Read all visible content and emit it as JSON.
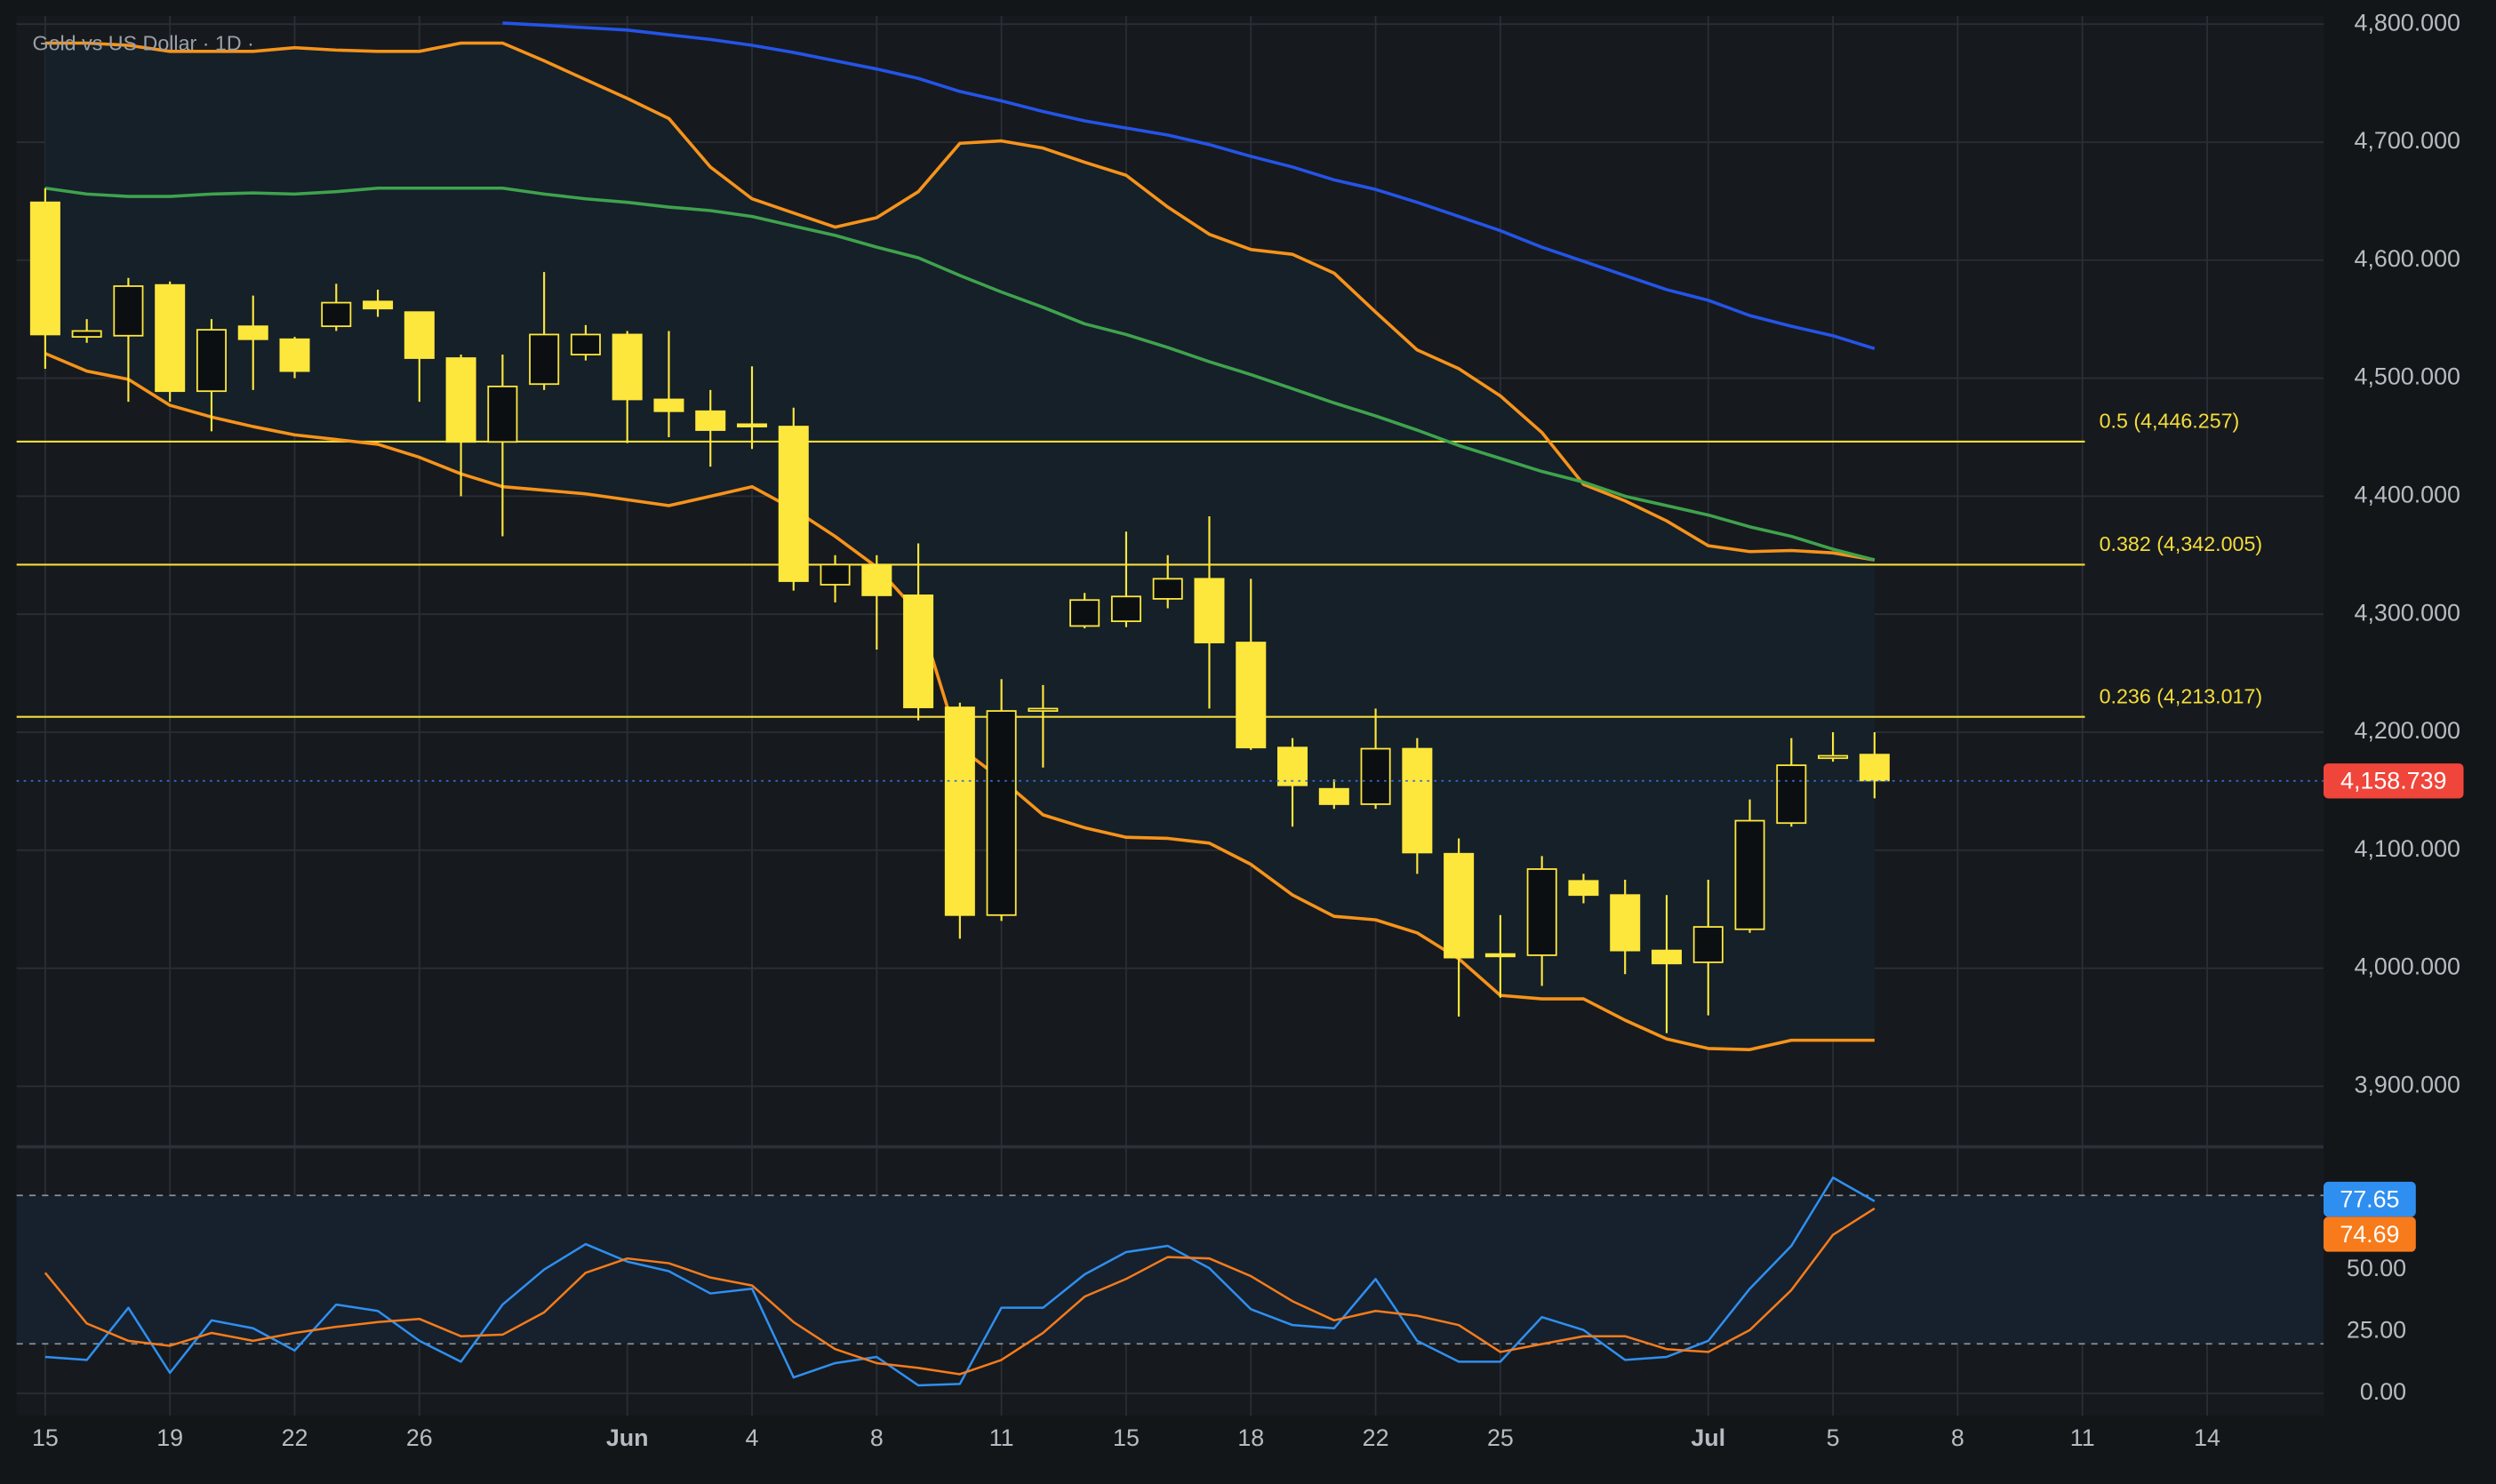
{
  "chart_data": [
    {
      "type": "candlestick",
      "title": "Gold vs US Dollar · 1D ·",
      "xlim": [
        -0.69,
        54.8
      ],
      "ylim": [
        3850,
        4807
      ],
      "yticks": [
        {
          "value": 3900,
          "label": "3,900.000"
        },
        {
          "value": 4000,
          "label": "4,000.000"
        },
        {
          "value": 4100,
          "label": "4,100.000"
        },
        {
          "value": 4200,
          "label": "4,200.000"
        },
        {
          "value": 4300,
          "label": "4,300.000"
        },
        {
          "value": 4400,
          "label": "4,400.000"
        },
        {
          "value": 4500,
          "label": "4,500.000"
        },
        {
          "value": 4600,
          "label": "4,600.000"
        },
        {
          "value": 4700,
          "label": "4,700.000"
        },
        {
          "value": 4800,
          "label": "4,800.000"
        }
      ],
      "grid": true,
      "up_color": "#0c0f12",
      "down_color": "#fde73c",
      "wick_color": "#fde73c",
      "open": [
        4649,
        4535,
        4536,
        4579,
        4489,
        4544,
        4533,
        4544,
        4565,
        4556,
        4517,
        4446,
        4495,
        4520,
        4537,
        4482,
        4472,
        4461,
        4459,
        4325,
        4342,
        4316,
        4221,
        4045,
        4218,
        4290,
        4294,
        4313,
        4330,
        4276,
        4187,
        4152,
        4139,
        4186,
        4097,
        4012,
        4011,
        4074,
        4062,
        4015,
        4005,
        4033,
        4123,
        4178,
        4181
      ],
      "high": [
        4661,
        4550,
        4585,
        4582,
        4550,
        4570,
        4535,
        4580,
        4575,
        4556,
        4520,
        4520,
        4590,
        4545,
        4540,
        4540,
        4490,
        4510,
        4475,
        4350,
        4350,
        4360,
        4225,
        4245,
        4240,
        4318,
        4370,
        4350,
        4383,
        4330,
        4195,
        4160,
        4220,
        4195,
        4110,
        4045,
        4095,
        4080,
        4075,
        4062,
        4075,
        4143,
        4195,
        4200,
        4200
      ],
      "low": [
        4508,
        4530,
        4480,
        4480,
        4455,
        4490,
        4500,
        4540,
        4552,
        4480,
        4400,
        4366,
        4490,
        4515,
        4445,
        4450,
        4425,
        4440,
        4320,
        4310,
        4270,
        4210,
        4025,
        4040,
        4170,
        4288,
        4289,
        4305,
        4220,
        4185,
        4120,
        4135,
        4135,
        4080,
        3959,
        3975,
        3985,
        4055,
        3995,
        3945,
        3960,
        4030,
        4120,
        4175,
        4144
      ],
      "close": [
        4537,
        4540,
        4578,
        4489,
        4541,
        4533,
        4506,
        4564,
        4559,
        4517,
        4446,
        4493,
        4537,
        4537,
        4482,
        4472,
        4456,
        4459,
        4328,
        4342,
        4316,
        4221,
        4045,
        4218,
        4220,
        4312,
        4315,
        4330,
        4276,
        4187,
        4155,
        4139,
        4186,
        4098,
        4009,
        4010,
        4084,
        4062,
        4015,
        4004,
        4035,
        4125,
        4172,
        4180,
        4159
      ],
      "overlays": [
        {
          "color": "#f7931a",
          "values": [
            4784,
            4784,
            4782,
            4777,
            4777,
            4777,
            4780,
            4778,
            4777,
            4777,
            4784,
            4784,
            4769,
            4753,
            4737,
            4720,
            4679,
            4652,
            4640,
            4628,
            4636,
            4658,
            4699,
            4701,
            4695,
            4683,
            4672,
            4645,
            4622,
            4609,
            4605,
            4589,
            4556,
            4524,
            4508,
            4485,
            4454,
            4410,
            4396,
            4379,
            4358,
            4353,
            4354,
            4352,
            4346
          ]
        },
        {
          "color": "#3fa34d",
          "values": [
            4661,
            4656,
            4654,
            4654,
            4656,
            4657,
            4656,
            4658,
            4661,
            4661,
            4661,
            4661,
            4656,
            4652,
            4649,
            4645,
            4642,
            4637,
            4629,
            4621,
            4611,
            4602,
            4587,
            4573,
            4560,
            4546,
            4537,
            4526,
            4514,
            4503,
            4491,
            4479,
            4468,
            4456,
            4443,
            4432,
            4421,
            4412,
            4400,
            4392,
            4384,
            4374,
            4366,
            4355,
            4346
          ]
        },
        {
          "color": "#f7931a",
          "values": [
            4521,
            4506,
            4499,
            4477,
            4467,
            4459,
            4452,
            4448,
            4444,
            4433,
            4419,
            4408,
            4405,
            4402,
            4397,
            4392,
            4400,
            4408,
            4389,
            4366,
            4340,
            4301,
            4187,
            4160,
            4130,
            4119,
            4111,
            4110,
            4106,
            4088,
            4062,
            4044,
            4041,
            4030,
            4008,
            3977,
            3974,
            3974,
            3956,
            3940,
            3932,
            3931,
            3939,
            3939,
            3939
          ]
        },
        {
          "color": "#2454e8",
          "values": [
            null,
            null,
            null,
            null,
            null,
            null,
            null,
            null,
            null,
            null,
            null,
            4801,
            4799,
            4797,
            4795,
            4791,
            4787,
            4782,
            4776,
            4769,
            4762,
            4754,
            4743,
            4735,
            4726,
            4718,
            4712,
            4706,
            4698,
            4688,
            4679,
            4668,
            4660,
            4649,
            4637,
            4625,
            4611,
            4599,
            4587,
            4575,
            4566,
            4553,
            4544,
            4536,
            4525
          ]
        }
      ],
      "band_fill": {
        "between": [
          0,
          2
        ],
        "color": "#152029"
      },
      "fib_levels": {
        "color": "#f5dc3b",
        "levels": [
          {
            "value": 4446.257,
            "label": "0.5 (4,446.257)"
          },
          {
            "value": 4342.005,
            "label": "0.382 (4,342.005)"
          },
          {
            "value": 4213.017,
            "label": "0.236 (4,213.017)"
          }
        ]
      },
      "last_price": {
        "value": 4158.739,
        "label": "4,158.739",
        "color": "#f0453a",
        "line_color": "#2f6fd8"
      }
    },
    {
      "type": "line",
      "xlim": [
        -0.69,
        54.8
      ],
      "ylim": [
        -9,
        99
      ],
      "xticks": [
        {
          "value": 0,
          "label": "15"
        },
        {
          "value": 3,
          "label": "19"
        },
        {
          "value": 6,
          "label": "22"
        },
        {
          "value": 9,
          "label": "26"
        },
        {
          "value": 14,
          "label": "Jun"
        },
        {
          "value": 17,
          "label": "4"
        },
        {
          "value": 20,
          "label": "8"
        },
        {
          "value": 23,
          "label": "11"
        },
        {
          "value": 26,
          "label": "15"
        },
        {
          "value": 29,
          "label": "18"
        },
        {
          "value": 32,
          "label": "22"
        },
        {
          "value": 35,
          "label": "25"
        },
        {
          "value": 40,
          "label": "Jul"
        },
        {
          "value": 43,
          "label": "5"
        },
        {
          "value": 46,
          "label": "8"
        },
        {
          "value": 49,
          "label": "11"
        },
        {
          "value": 52,
          "label": "14"
        }
      ],
      "yticks": [
        {
          "value": 0,
          "label": "0.00"
        },
        {
          "value": 25,
          "label": "25.00"
        },
        {
          "value": 50,
          "label": "50.00"
        }
      ],
      "grid": true,
      "bands": [
        20,
        80
      ],
      "band_color": "#16212d",
      "series": [
        {
          "color": "#2f8ff0",
          "values": [
            14.7,
            13.5,
            34.6,
            8.3,
            29.5,
            26.3,
            17.3,
            35.9,
            33.3,
            21.2,
            12.8,
            35.9,
            50,
            60.3,
            53.2,
            49.4,
            40.4,
            42.3,
            6.4,
            12.2,
            14.7,
            3.2,
            3.8,
            34.6,
            34.6,
            48.1,
            57.1,
            59.6,
            50.6,
            34,
            27.6,
            26.3,
            46.2,
            21.2,
            12.8,
            12.8,
            30.8,
            25.6,
            13.5,
            14.7,
            21.2,
            42.3,
            59.6,
            87.2,
            77.65
          ],
          "last_label": "77.65"
        },
        {
          "color": "#f77b1b",
          "values": [
            48.7,
            28.2,
            21.2,
            19.2,
            24.4,
            21.2,
            24.4,
            26.9,
            28.8,
            30.1,
            23.1,
            23.7,
            32.7,
            48.7,
            54.5,
            52.6,
            46.8,
            43.6,
            28.8,
            17.9,
            12.2,
            10.3,
            7.7,
            13.5,
            24.4,
            39.1,
            46.2,
            55.1,
            54.5,
            47.4,
            37.2,
            29.5,
            33.3,
            31.4,
            27.6,
            16.7,
            19.9,
            23.1,
            23.1,
            17.9,
            16.7,
            25.6,
            41.7,
            64.1,
            74.69
          ],
          "last_label": "74.69"
        }
      ]
    }
  ]
}
